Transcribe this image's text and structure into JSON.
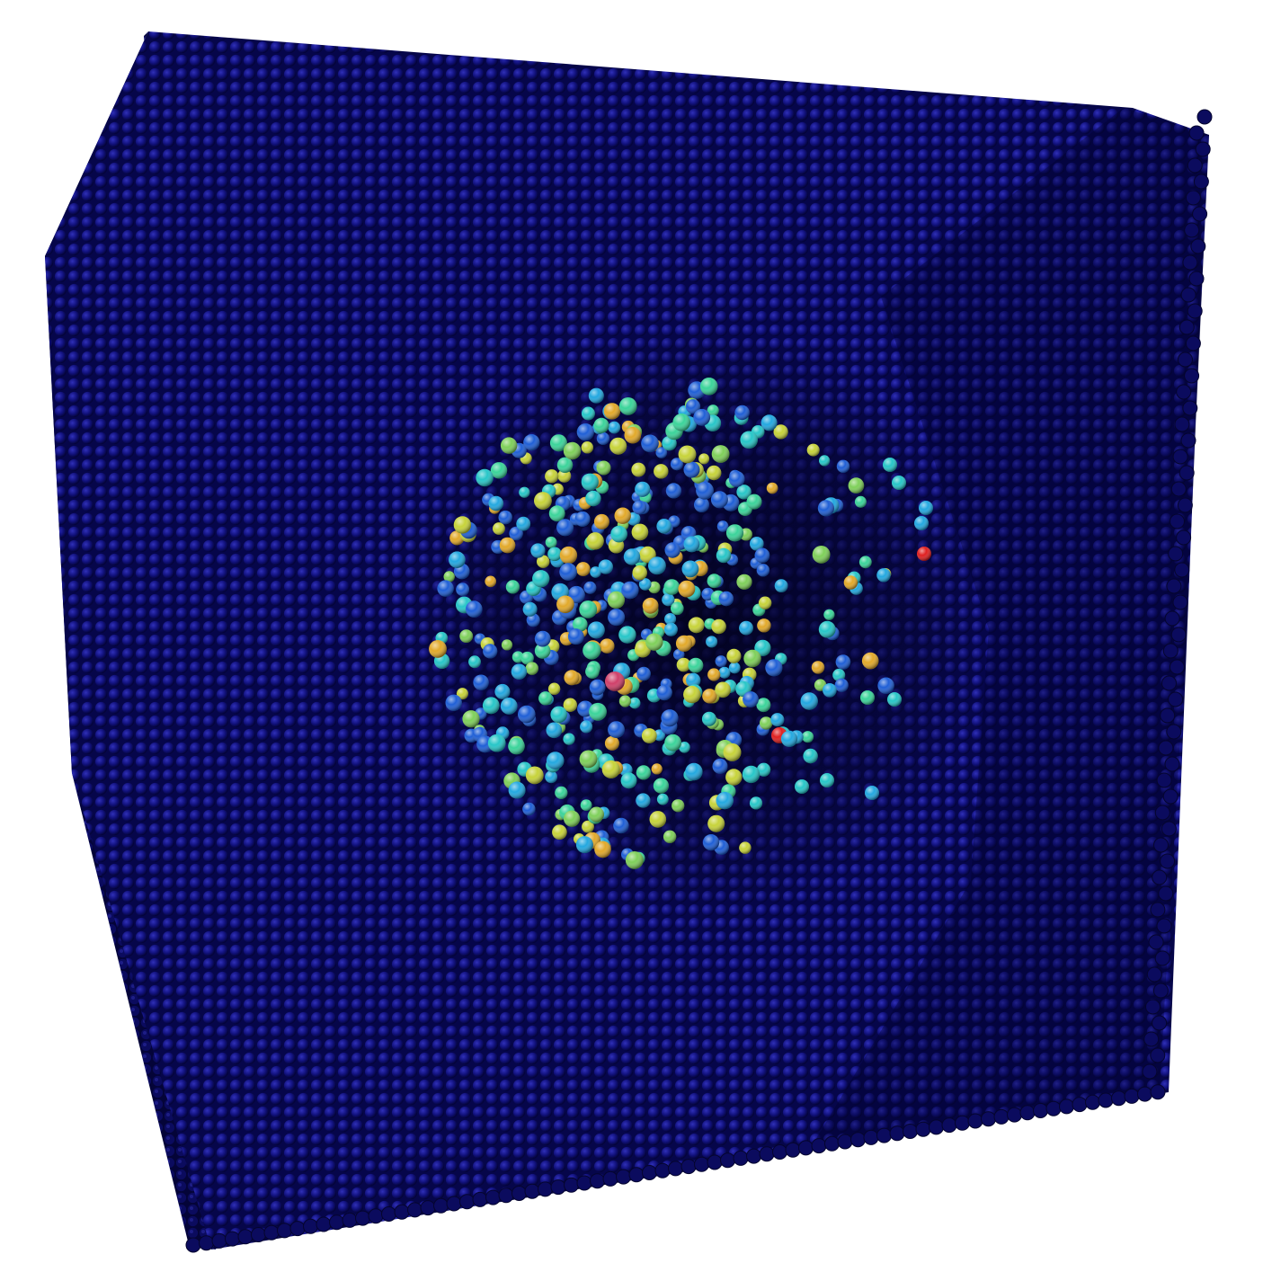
{
  "scene": {
    "subject": "atomistic-simulation-render",
    "background_color": "#ffffff",
    "lattice_color": "#0a0a6e",
    "lattice_highlight": "#3a3ad0",
    "cluster_palette": [
      "#1f5fd6",
      "#23a8e0",
      "#27c6c8",
      "#3bd49a",
      "#7fd05a",
      "#c7d33a",
      "#e2a92a",
      "#e06a1c",
      "#e02020",
      "#d0406a"
    ]
  }
}
